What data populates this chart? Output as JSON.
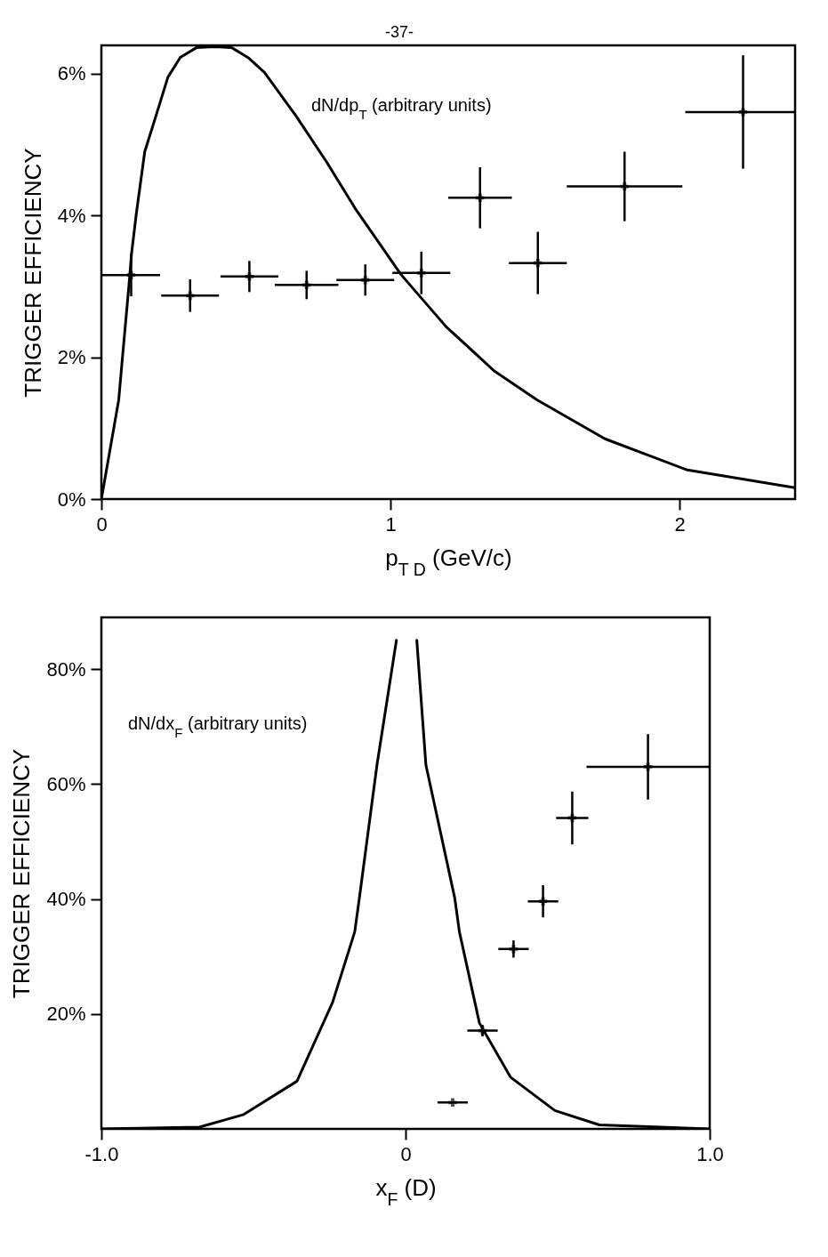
{
  "chart_data": [
    {
      "type": "scatter",
      "annotations": [
        "-37-",
        "dN/dp$_{T}$ (arbitrary units)"
      ],
      "xlabel": "p$_{T D}$ (GeV/c)",
      "ylabel": "TRIGGER EFFICIENCY",
      "xlim": [
        0,
        2.4
      ],
      "ylim": [
        0,
        6.4
      ],
      "xticks": [
        0,
        1,
        2
      ],
      "yticks": [
        {
          "value": 0,
          "label": "0%"
        },
        {
          "value": 2,
          "label": "2%"
        },
        {
          "value": 4,
          "label": "4%"
        },
        {
          "value": 6,
          "label": "6%"
        }
      ],
      "series": [
        {
          "type": "line",
          "color": "#000000",
          "line_style": "solid",
          "marker": "none",
          "x": [
            0,
            0.06,
            0.073,
            0.095,
            0.104,
            0.12,
            0.15,
            0.193,
            0.23,
            0.273,
            0.33,
            0.39,
            0.45,
            0.51,
            0.564,
            0.674,
            0.78,
            0.878,
            1.036,
            1.193,
            1.303,
            1.358,
            1.507,
            1.742,
            2.027,
            2.4
          ],
          "values": [
            0,
            1.4,
            2.0,
            3.0,
            3.45,
            4.0,
            4.9,
            5.46,
            5.95,
            6.23,
            6.37,
            6.38,
            6.37,
            6.22,
            6.02,
            5.4,
            4.75,
            4.1,
            3.17,
            2.43,
            2.02,
            1.81,
            1.4,
            0.85,
            0.41,
            0.16
          ]
        },
        {
          "type": "scatter",
          "color": "#000000",
          "marker": "cross",
          "x": [
            0.103,
            0.307,
            0.512,
            0.71,
            0.913,
            1.107,
            1.31,
            1.51,
            1.81,
            2.22
          ],
          "values": [
            3.16,
            2.87,
            3.14,
            3.02,
            3.09,
            3.19,
            4.25,
            3.33,
            4.41,
            5.46
          ],
          "errors": [
            0.3,
            0.23,
            0.22,
            0.2,
            0.22,
            0.3,
            0.43,
            0.44,
            0.49,
            0.8
          ],
          "xerrors": [
            0.1,
            0.1,
            0.1,
            0.11,
            0.1,
            0.1,
            0.11,
            0.1,
            0.2,
            [
              2.02,
              2.4
            ]
          ]
        }
      ]
    },
    {
      "type": "scatter",
      "annotations": [
        "dN/dx$_{F}$ (arbitrary units)"
      ],
      "xlabel": "x$_{F}$ (D)",
      "ylabel": "TRIGGER EFFICIENCY",
      "xlim": [
        -1,
        1
      ],
      "ylim": [
        0,
        89
      ],
      "xticks": [
        {
          "value": -1,
          "label": "-1.0"
        },
        0,
        {
          "value": 1,
          "label": "1.0"
        }
      ],
      "yticks": [
        {
          "value": 20,
          "label": "20%"
        },
        {
          "value": 40,
          "label": "40%"
        },
        {
          "value": 60,
          "label": "60%"
        },
        {
          "value": 80,
          "label": "80%"
        }
      ],
      "series": [
        {
          "type": "line",
          "color": "#000000",
          "line_style": "solid",
          "marker": "none",
          "x": [
            -1.0,
            -0.678,
            -0.532,
            -0.357,
            -0.24,
            -0.167,
            -0.152,
            -0.094,
            -0.03,
            0.004,
            0.037,
            0.067,
            0.162,
            0.177,
            0.243,
            0.345,
            0.491,
            0.637,
            1.0
          ],
          "values": [
            0,
            0.3,
            2.5,
            8.3,
            22.0,
            34.3,
            40.1,
            63.3,
            85,
            null,
            85,
            63.3,
            40.1,
            34.3,
            18.4,
            9.0,
            3.2,
            0.7,
            0
          ]
        },
        {
          "type": "scatter",
          "color": "#000000",
          "marker": "cross",
          "x": [
            0.155,
            0.253,
            0.355,
            0.452,
            0.548,
            0.797
          ],
          "values": [
            4.6,
            17.1,
            31.3,
            39.6,
            54.1,
            63.0
          ],
          "errors": [
            null,
            1,
            1.5,
            2.8,
            4.6,
            5.7
          ],
          "xerrors": [
            0.05,
            0.05,
            0.05,
            0.05,
            0.053,
            [
              0.595,
              1.0
            ]
          ]
        }
      ]
    }
  ]
}
